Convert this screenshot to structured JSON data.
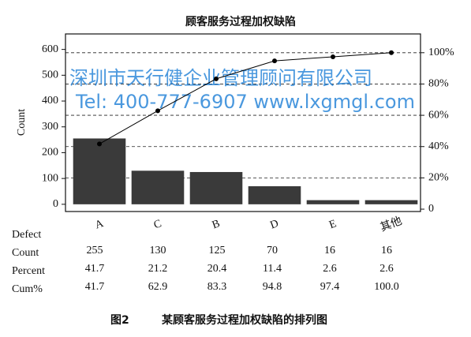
{
  "chart_data": {
    "type": "pareto",
    "title": "顾客服务过程加权缺陷",
    "y_label": "Count",
    "category_label": "Defect",
    "categories": [
      "A",
      "C",
      "B",
      "D",
      "E",
      "其他"
    ],
    "series": [
      {
        "name": "Count",
        "color": "#3a3a3a",
        "values": [
          255,
          130,
          125,
          70,
          16,
          16
        ]
      },
      {
        "name": "Percent",
        "values": [
          41.7,
          21.2,
          20.4,
          11.4,
          2.6,
          2.6
        ]
      },
      {
        "name": "Cum%",
        "color": "#000000",
        "axis": "y2",
        "values": [
          41.7,
          62.9,
          83.3,
          94.8,
          97.4,
          100.0
        ],
        "value_labels": [
          "41.7",
          "62.9",
          "83.3",
          "94.8",
          "97.4",
          "100.0"
        ]
      }
    ],
    "ylim": [
      -28,
      660
    ],
    "yticks": [
      0,
      100,
      200,
      300,
      400,
      500,
      600
    ],
    "y2lim": [
      -1.5,
      112
    ],
    "y2ticks": [
      0,
      {
        "value": 20,
        "label": "20%"
      },
      {
        "value": 40,
        "label": "40%"
      },
      {
        "value": 60,
        "label": "60%"
      },
      {
        "value": 80,
        "label": "80%"
      },
      {
        "value": 100,
        "label": "100%"
      }
    ],
    "grid": "y2",
    "watermark": [
      "深圳市天行健企业管理顾问有限公司",
      "Tel: 400-777-6907 www.lxgmgl.com"
    ],
    "caption_number": "图2",
    "caption": "某顾客服务过程加权缺陷的排列图"
  }
}
